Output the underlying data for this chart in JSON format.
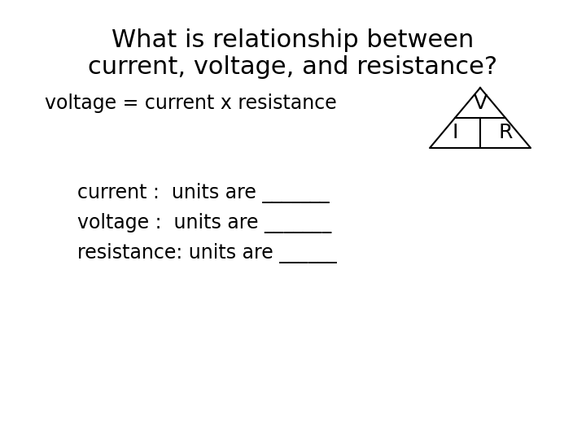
{
  "title_line1": "What is relationship between",
  "title_line2": "current, voltage, and resistance?",
  "equation": "voltage = current x resistance",
  "line1": "current :  units are _______",
  "line2": "voltage :  units are _______",
  "line3": "resistance: units are ______",
  "triangle_V": "V",
  "triangle_I": "I",
  "triangle_R": "R",
  "bg_color": "#ffffff",
  "text_color": "#000000",
  "title_fontsize": 22,
  "body_fontsize": 17,
  "triangle_fontsize": 18
}
